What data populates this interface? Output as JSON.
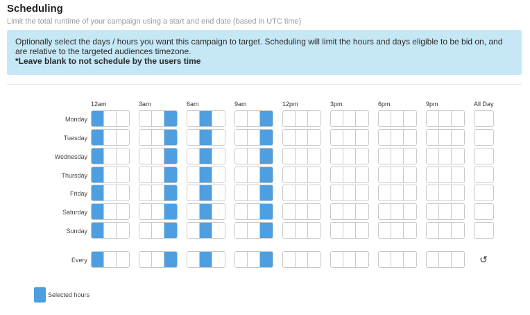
{
  "header": {
    "title": "Scheduling",
    "subtitle": "Limit the total runtime of your campaign using a start and end date (based in UTC time)"
  },
  "info": {
    "text": "Optionally select the days / hours you want this campaign to target. Scheduling will limit the hours and days eligible to be bid on, and are relative to the targeted audiences timezone.",
    "note": "*Leave blank to not schedule by the users time"
  },
  "grid": {
    "hour_labels": [
      "12am",
      "3am",
      "6am",
      "9am",
      "12pm",
      "3pm",
      "6pm",
      "9pm"
    ],
    "all_day_label": "All Day",
    "days": [
      "Monday",
      "Tuesday",
      "Wednesday",
      "Thursday",
      "Friday",
      "Saturday",
      "Sunday"
    ],
    "every_label": "Every",
    "selected_hours": [
      0,
      5,
      7,
      11
    ],
    "selected_color": "#4e9fe0"
  },
  "legend": {
    "label": "Selected hours"
  },
  "icons": {
    "reset": "reset-icon"
  }
}
